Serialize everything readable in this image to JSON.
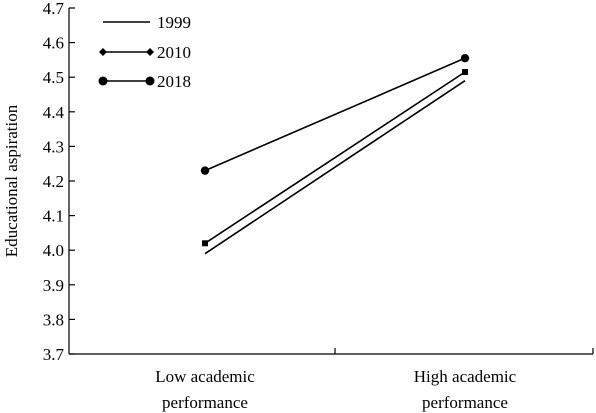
{
  "chart_data": {
    "type": "line",
    "title": "",
    "xlabel": "",
    "ylabel": "Educational aspiration",
    "ylim": [
      3.7,
      4.7
    ],
    "yticks": [
      "3.7",
      "3.8",
      "3.9",
      "4.0",
      "4.1",
      "4.2",
      "4.3",
      "4.4",
      "4.5",
      "4.6",
      "4.7"
    ],
    "categories": [
      [
        "Low academic",
        "performance"
      ],
      [
        "High academic",
        "performance"
      ]
    ],
    "grid": false,
    "legend_position": "top-left",
    "series": [
      {
        "name": "1999",
        "values": [
          3.99,
          4.49
        ],
        "marker": "none",
        "color": "#000000"
      },
      {
        "name": "2010",
        "values": [
          4.02,
          4.515
        ],
        "marker": "diamond",
        "color": "#000000"
      },
      {
        "name": "2018",
        "values": [
          4.23,
          4.555
        ],
        "marker": "circle",
        "color": "#000000"
      }
    ]
  }
}
